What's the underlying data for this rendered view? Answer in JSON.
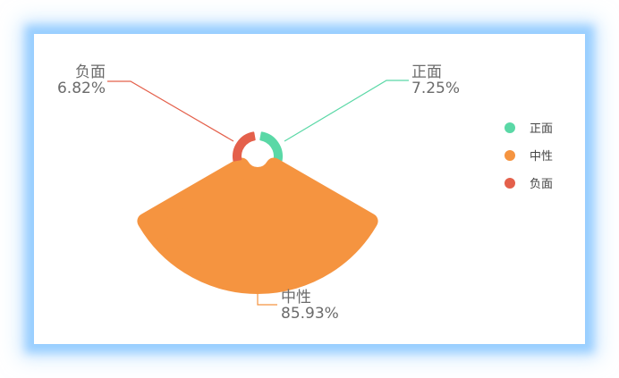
{
  "chart_data": {
    "type": "pie",
    "variant": "nightingale-rose",
    "series": [
      {
        "name": "正面",
        "value": 7.25,
        "label": "7.25%",
        "color": "#5ad8a6"
      },
      {
        "name": "中性",
        "value": 85.93,
        "label": "85.93%",
        "color": "#f59440"
      },
      {
        "name": "负面",
        "value": 6.82,
        "label": "6.82%",
        "color": "#e4604b"
      }
    ],
    "legend": {
      "placement": "right",
      "items": [
        "正面",
        "中性",
        "负面"
      ]
    }
  }
}
